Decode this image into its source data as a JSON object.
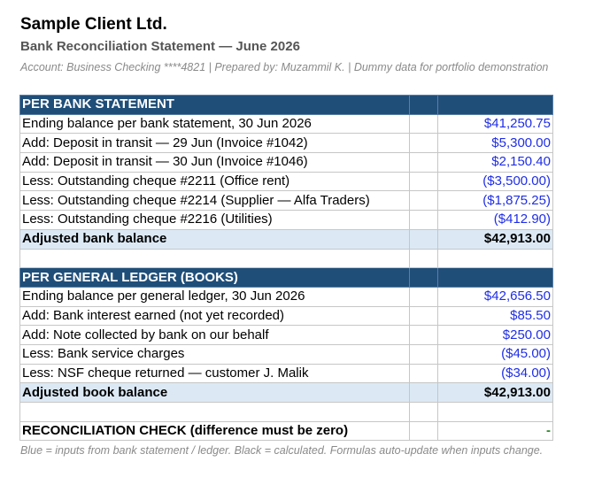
{
  "header": {
    "company": "Sample Client Ltd.",
    "title": "Bank Reconciliation Statement — June 2026",
    "meta": "Account: Business Checking ****4821  |  Prepared by: Muzammil K.  |  Dummy data for portfolio demonstration"
  },
  "bank": {
    "heading": "PER BANK STATEMENT",
    "rows": [
      {
        "label": "Ending balance per bank statement, 30 Jun 2026",
        "amount": "$41,250.75"
      },
      {
        "label": "Add: Deposit in transit — 29 Jun (Invoice #1042)",
        "amount": "$5,300.00"
      },
      {
        "label": "Add: Deposit in transit — 30 Jun (Invoice #1046)",
        "amount": "$2,150.40"
      },
      {
        "label": "Less: Outstanding cheque #2211 (Office rent)",
        "amount": "($3,500.00)"
      },
      {
        "label": "Less: Outstanding cheque #2214 (Supplier — Alfa Traders)",
        "amount": "($1,875.25)"
      },
      {
        "label": "Less: Outstanding cheque #2216 (Utilities)",
        "amount": "($412.90)"
      }
    ],
    "total_label": "Adjusted bank balance",
    "total_amount": "$42,913.00"
  },
  "ledger": {
    "heading": "PER GENERAL LEDGER (BOOKS)",
    "rows": [
      {
        "label": "Ending balance per general ledger, 30 Jun 2026",
        "amount": "$42,656.50"
      },
      {
        "label": "Add: Bank interest earned (not yet recorded)",
        "amount": "$85.50"
      },
      {
        "label": "Add: Note collected by bank on our behalf",
        "amount": "$250.00"
      },
      {
        "label": "Less: Bank service charges",
        "amount": "($45.00)"
      },
      {
        "label": "Less: NSF cheque returned — customer J. Malik",
        "amount": "($34.00)"
      }
    ],
    "total_label": "Adjusted book balance",
    "total_amount": "$42,913.00"
  },
  "check": {
    "label": "RECONCILIATION CHECK (difference must be zero)",
    "value": "-"
  },
  "footer": {
    "note": "Blue = inputs from bank statement / ledger.  Black = calculated. Formulas auto-update when inputs change."
  },
  "colors": {
    "section_header_bg": "#1f4e79",
    "total_row_bg": "#dce9f5",
    "input_text": "#1f2ee6",
    "check_ok": "#2e8b2e"
  }
}
